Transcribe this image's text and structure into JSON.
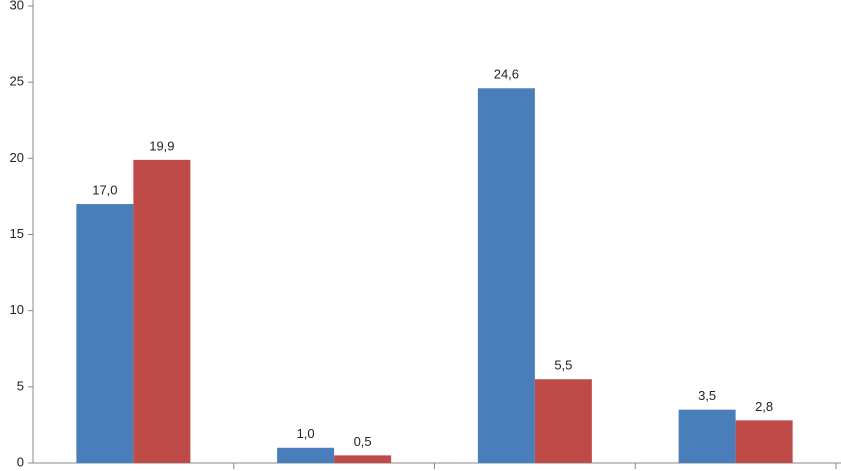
{
  "chart_data": {
    "type": "bar",
    "categories": [
      null,
      null,
      null,
      null
    ],
    "series": [
      {
        "color": "#4a7ebb",
        "values": [
          17.0,
          1.0,
          24.6,
          3.5
        ],
        "value_labels": [
          "17,0",
          "1,0",
          "24,6",
          "3,5"
        ]
      },
      {
        "color": "#be4b48",
        "values": [
          19.9,
          0.5,
          5.5,
          2.8
        ],
        "value_labels": [
          "19,9",
          "0,5",
          "5,5",
          "2,8"
        ]
      }
    ],
    "ylim": [
      0,
      30
    ],
    "yticks": [
      0,
      5,
      10,
      15,
      20,
      25,
      30
    ],
    "grid": false
  }
}
